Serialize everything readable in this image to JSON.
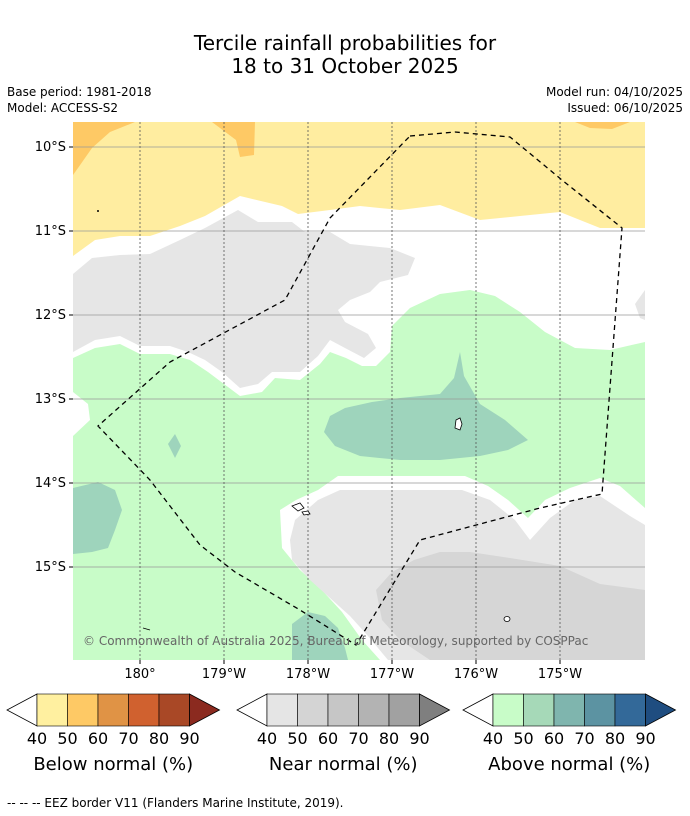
{
  "header": {
    "title_line1": "Tercile rainfall probabilities for",
    "title_line2": "18 to 31 October 2025",
    "base_period": "Base period: 1981-2018",
    "model": "Model: ACCESS-S2",
    "model_run": "Model run: 04/10/2025",
    "issued": "Issued: 06/10/2025"
  },
  "map": {
    "lat_labels": [
      "10°S",
      "11°S",
      "12°S",
      "13°S",
      "14°S",
      "15°S"
    ],
    "lon_labels": [
      "180°",
      "179°W",
      "178°W",
      "177°W",
      "176°W",
      "175°W"
    ],
    "attribution": "© Commonwealth of Australia 2025, Bureau of Meteorology, supported by COSPPac",
    "colors": {
      "below_40": "#ffeda0",
      "below_50": "#fec965",
      "near_40": "#e6e6e6",
      "near_50": "#d6d6d6",
      "above_40": "#c8fcc8",
      "above_50": "#9ed4bc",
      "land": "#ffffff"
    }
  },
  "colorbars": [
    {
      "title": "Below normal (%)",
      "ticks": [
        "40",
        "50",
        "60",
        "70",
        "80",
        "90"
      ],
      "colors": [
        "#fff0a0",
        "#fec965",
        "#e09345",
        "#d0612f",
        "#a94826",
        "#8b2a1f"
      ]
    },
    {
      "title": "Near normal (%)",
      "ticks": [
        "40",
        "50",
        "60",
        "70",
        "80",
        "90"
      ],
      "colors": [
        "#e5e5e5",
        "#d4d4d4",
        "#c6c6c6",
        "#b3b3b3",
        "#a1a1a1",
        "#7f7f7f"
      ]
    },
    {
      "title": "Above normal (%)",
      "ticks": [
        "40",
        "50",
        "60",
        "70",
        "80",
        "90"
      ],
      "colors": [
        "#c8fcc8",
        "#a6d9b8",
        "#7fb5ae",
        "#5c93a2",
        "#336999",
        "#1f4d80"
      ]
    }
  ],
  "footnote": "--  --  -- EEZ border V11 (Flanders Marine Institute, 2019)."
}
